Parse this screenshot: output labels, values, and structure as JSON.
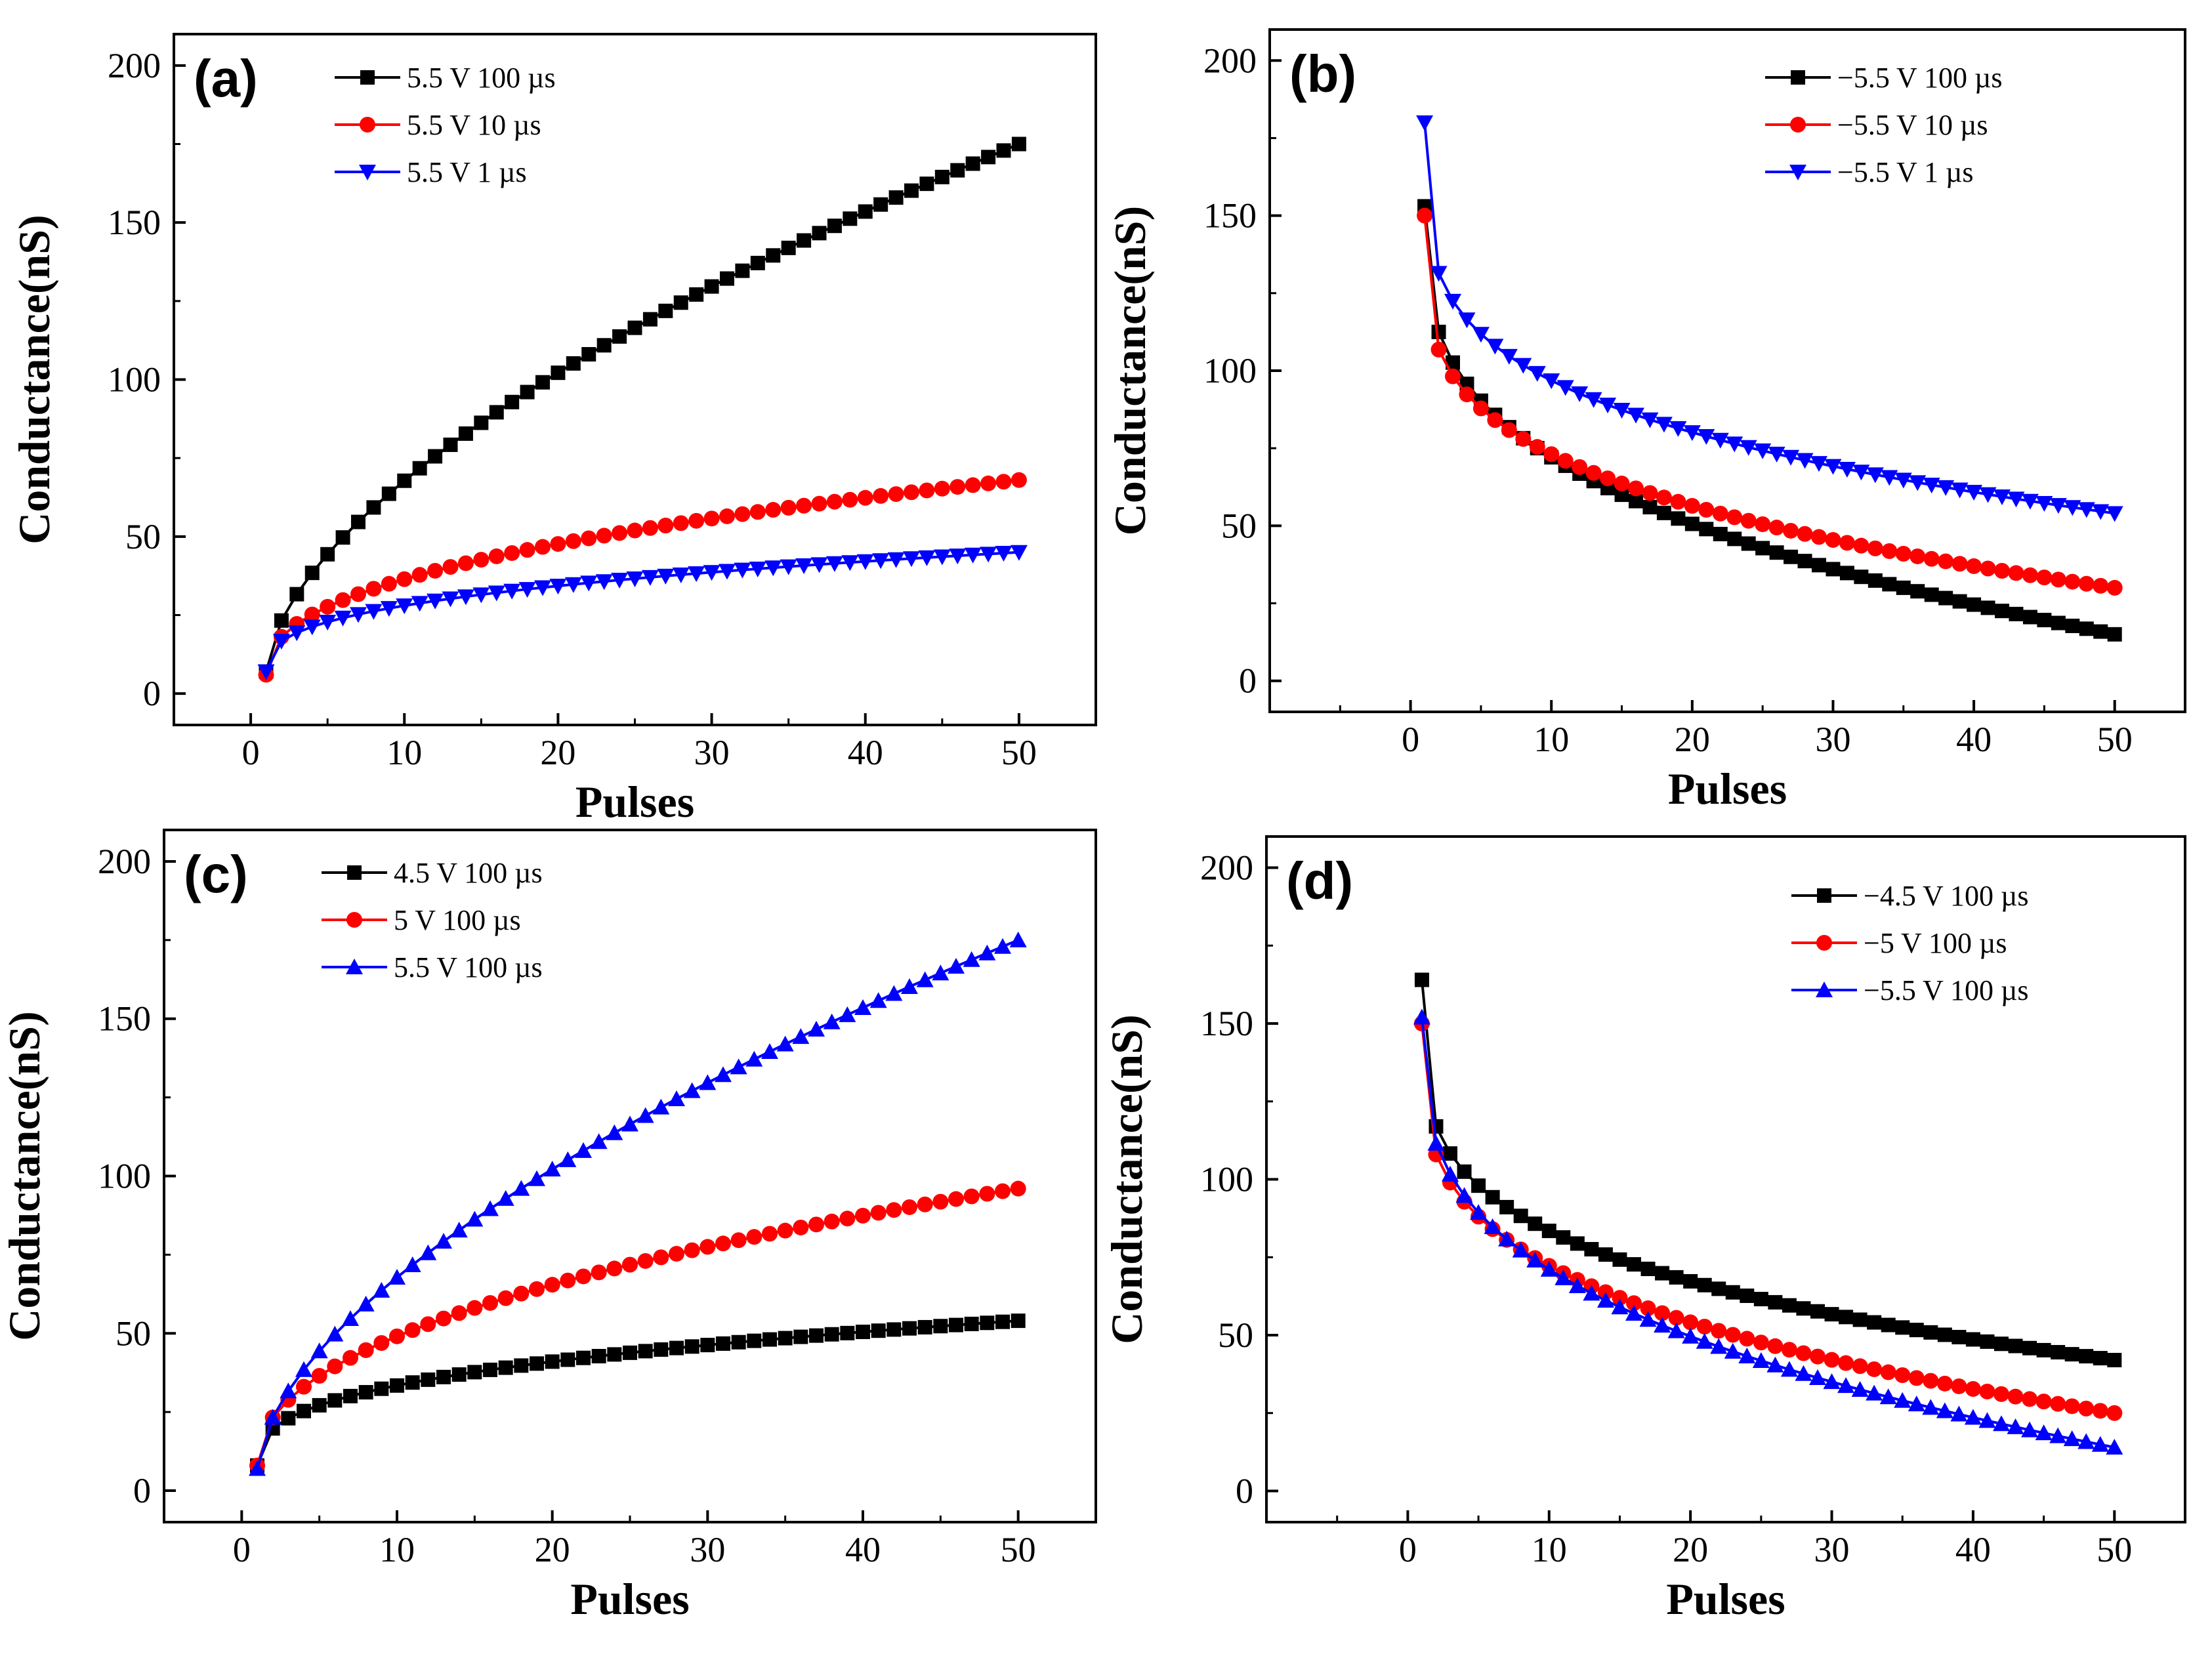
{
  "figure": {
    "background": "#ffffff"
  },
  "chart_data": [
    {
      "panel": "(a)",
      "type": "line",
      "xlabel": "Pulses",
      "ylabel": "Conductance(nS)",
      "xlim": [
        -5,
        55
      ],
      "ylim": [
        -10,
        210
      ],
      "xticks": [
        0,
        10,
        20,
        30,
        40,
        50
      ],
      "yticks": [
        0,
        50,
        100,
        150,
        200
      ],
      "legend_position": "top",
      "series": [
        {
          "name": "5.5 V  100 µs",
          "color": "#000000",
          "marker": "square",
          "kind": "pot",
          "start": 7,
          "end": 175,
          "exponent": 0.6
        },
        {
          "name": "5.5 V   10 µs",
          "color": "#ff0000",
          "marker": "circle",
          "kind": "pot",
          "start": 6,
          "end": 68,
          "exponent": 0.42
        },
        {
          "name": "5.5 V     1 µs",
          "color": "#0000ff",
          "marker": "triangle-down",
          "kind": "pot",
          "start": 7,
          "end": 45,
          "exponent": 0.35
        }
      ]
    },
    {
      "panel": "(b)",
      "type": "line",
      "xlabel": "Pulses",
      "ylabel": "Conductance(nS)",
      "xlim": [
        -10,
        55
      ],
      "ylim": [
        -10,
        210
      ],
      "xticks": [
        0,
        10,
        20,
        30,
        40,
        50
      ],
      "yticks": [
        0,
        50,
        100,
        150,
        200
      ],
      "legend_position": "top-right",
      "series": [
        {
          "name": "−5.5 V  100 µs",
          "color": "#000000",
          "marker": "square",
          "kind": "dep",
          "start": 153,
          "end": 15,
          "exponent": 0.9
        },
        {
          "name": "−5.5 V   10 µs",
          "color": "#ff0000",
          "marker": "circle",
          "kind": "dep",
          "start": 150,
          "end": 30,
          "exponent": 0.75
        },
        {
          "name": "−5.5 V     1 µs",
          "color": "#0000ff",
          "marker": "triangle-down",
          "kind": "dep",
          "start": 180,
          "end": 54,
          "exponent": 0.7
        }
      ]
    },
    {
      "panel": "(c)",
      "type": "line",
      "xlabel": "Pulses",
      "ylabel": "Conductance(nS)",
      "xlim": [
        -5,
        55
      ],
      "ylim": [
        -10,
        210
      ],
      "xticks": [
        0,
        10,
        20,
        30,
        40,
        50
      ],
      "yticks": [
        0,
        50,
        100,
        150,
        200
      ],
      "legend_position": "top",
      "series": [
        {
          "name": "4.5 V   100 µs",
          "color": "#000000",
          "marker": "square",
          "kind": "pot",
          "start": 8,
          "end": 54,
          "exponent": 0.35
        },
        {
          "name": "5 V      100 µs",
          "color": "#ff0000",
          "marker": "circle",
          "kind": "pot",
          "start": 8,
          "end": 96,
          "exponent": 0.45
        },
        {
          "name": "5.5 V   100 µs",
          "color": "#0000ff",
          "marker": "triangle-up",
          "kind": "pot",
          "start": 7,
          "end": 175,
          "exponent": 0.6
        }
      ]
    },
    {
      "panel": "(d)",
      "type": "line",
      "xlabel": "Pulses",
      "ylabel": "Conductance(nS)",
      "xlim": [
        -10,
        55
      ],
      "ylim": [
        -10,
        210
      ],
      "xticks": [
        0,
        10,
        20,
        30,
        40,
        50
      ],
      "yticks": [
        0,
        50,
        100,
        150,
        200
      ],
      "legend_position": "top-right",
      "series": [
        {
          "name": "−4.5 V  100 µs",
          "color": "#000000",
          "marker": "square",
          "kind": "dep",
          "start": 164,
          "end": 42,
          "exponent": 0.7
        },
        {
          "name": "−5 V     100 µs",
          "color": "#ff0000",
          "marker": "circle",
          "kind": "dep",
          "start": 150,
          "end": 25,
          "exponent": 0.8
        },
        {
          "name": "−5.5 V  100 µs",
          "color": "#0000ff",
          "marker": "triangle-up",
          "kind": "dep",
          "start": 152,
          "end": 14,
          "exponent": 0.9
        }
      ]
    }
  ]
}
